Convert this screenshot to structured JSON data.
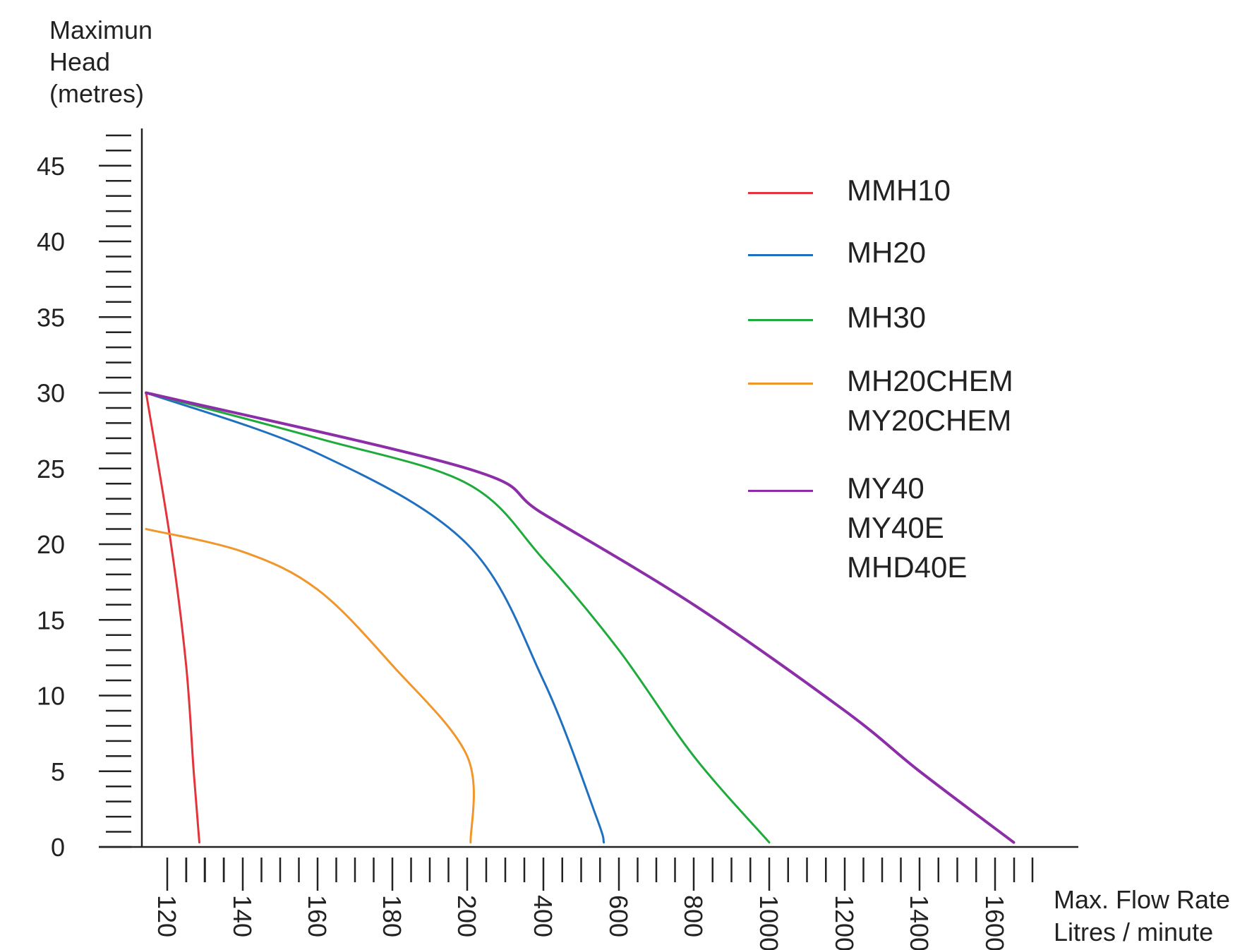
{
  "chart_data": {
    "type": "line",
    "y_axis": {
      "label_lines": [
        "Maximun",
        "Head",
        "(metres)"
      ],
      "ticks": [
        0,
        5,
        10,
        15,
        20,
        25,
        30,
        35,
        40,
        45
      ],
      "ylim": [
        0,
        47.5
      ],
      "minor_step": 1
    },
    "x_axis": {
      "label_lines": [
        "Max. Flow Rate",
        "Litres / minute"
      ],
      "tick_labels": [
        "120",
        "140",
        "160",
        "180",
        "200",
        "400",
        "600",
        "800",
        "1000",
        "1200",
        "1400",
        "1600"
      ],
      "scale": "non-linear (segmented)"
    },
    "legend_position": "top-right",
    "series": [
      {
        "name": "MMH10",
        "label_lines": [
          "MMH10"
        ],
        "color": "#e3343c",
        "points": [
          [
            114,
            30
          ],
          [
            121,
            20
          ],
          [
            125,
            12
          ],
          [
            127,
            5
          ],
          [
            128.5,
            0.3
          ]
        ]
      },
      {
        "name": "MH20",
        "label_lines": [
          "MH20"
        ],
        "color": "#1f70c1",
        "points": [
          [
            114,
            30
          ],
          [
            160,
            26
          ],
          [
            200,
            20
          ],
          [
            400,
            11
          ],
          [
            540,
            2
          ],
          [
            560,
            0.3
          ]
        ]
      },
      {
        "name": "MH30",
        "label_lines": [
          "MH30"
        ],
        "color": "#1faa3c",
        "points": [
          [
            114,
            30
          ],
          [
            160,
            27
          ],
          [
            200,
            24
          ],
          [
            400,
            19
          ],
          [
            600,
            13
          ],
          [
            800,
            6
          ],
          [
            1000,
            0.3
          ]
        ]
      },
      {
        "name": "MH20CHEM / MY20CHEM",
        "label_lines": [
          "MH20CHEM",
          "MY20CHEM"
        ],
        "color": "#f0962a",
        "points": [
          [
            114,
            21
          ],
          [
            140,
            19.5
          ],
          [
            160,
            17
          ],
          [
            180,
            12
          ],
          [
            200,
            6
          ],
          [
            209,
            0.3
          ]
        ]
      },
      {
        "name": "MY40 / MY40E / MHD40E",
        "label_lines": [
          "MY40",
          "MY40E",
          "MHD40E"
        ],
        "color": "#8c2ea8",
        "points": [
          [
            114,
            30
          ],
          [
            200,
            25
          ],
          [
            400,
            22
          ],
          [
            800,
            16
          ],
          [
            1200,
            9
          ],
          [
            1400,
            5
          ],
          [
            1650,
            0.3
          ]
        ]
      }
    ]
  }
}
